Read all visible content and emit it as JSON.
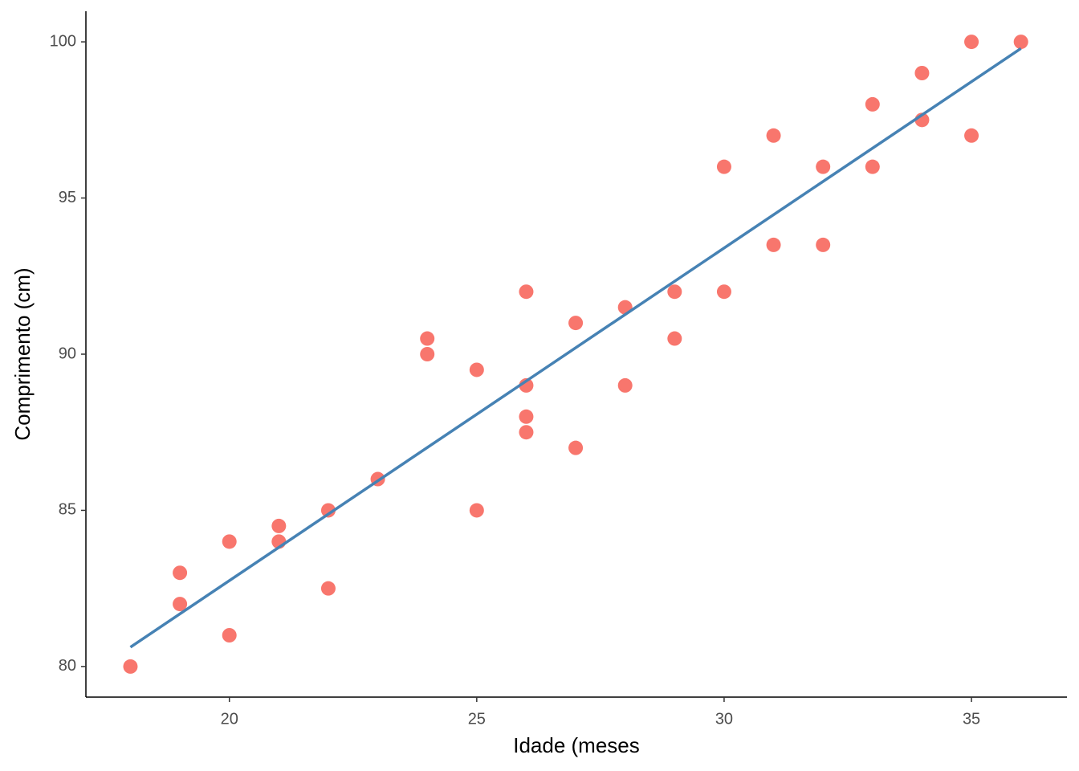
{
  "chart_data": {
    "type": "scatter",
    "x_label": "Idade (meses",
    "y_label": "Comprimento (cm)",
    "x": [
      18,
      19,
      19,
      20,
      20,
      21,
      21,
      22,
      22,
      23,
      24,
      24,
      25,
      25,
      26,
      26,
      26,
      26,
      27,
      27,
      28,
      28,
      29,
      29,
      30,
      30,
      31,
      31,
      32,
      32,
      33,
      33,
      34,
      34,
      35,
      35,
      36
    ],
    "series": [
      {
        "color": "#f8766d",
        "values": [
          80,
          83,
          82,
          84,
          81,
          84.5,
          84,
          85,
          82.5,
          86,
          90.5,
          90,
          89.5,
          85,
          92,
          89,
          88,
          87.5,
          91,
          87,
          91.5,
          89,
          92,
          90.5,
          96,
          92,
          97,
          93.5,
          96,
          93.5,
          98,
          96,
          99,
          97.5,
          100,
          97,
          100
        ]
      }
    ],
    "fit": {
      "x": [
        18,
        36
      ],
      "values": [
        80.62,
        99.79
      ],
      "color": "#4682b4"
    },
    "xlim": [
      17.1,
      36.93
    ],
    "ylim": [
      79.02,
      100.98
    ],
    "xticks": [
      20,
      25,
      30,
      35
    ],
    "yticks": [
      80,
      85,
      90,
      95,
      100
    ],
    "grid": false
  }
}
